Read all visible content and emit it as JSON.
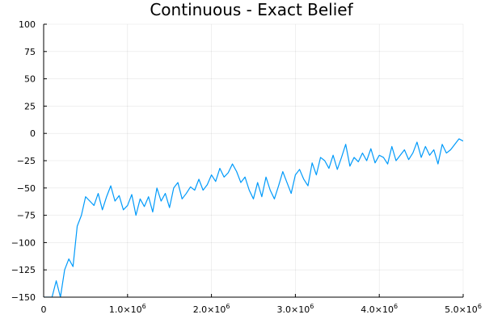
{
  "chart_data": {
    "type": "line",
    "title": "Continuous - Exact Belief",
    "xlabel": "",
    "ylabel": "",
    "xlim": [
      0,
      5000000
    ],
    "ylim": [
      -150,
      100
    ],
    "grid": true,
    "legend": "none",
    "x_ticks": [
      {
        "value": 0,
        "label": "0",
        "exp": ""
      },
      {
        "value": 1000000,
        "label": "1.0×10",
        "exp": "6"
      },
      {
        "value": 2000000,
        "label": "2.0×10",
        "exp": "6"
      },
      {
        "value": 3000000,
        "label": "3.0×10",
        "exp": "6"
      },
      {
        "value": 4000000,
        "label": "4.0×10",
        "exp": "6"
      },
      {
        "value": 5000000,
        "label": "5.0×10",
        "exp": "6"
      }
    ],
    "y_ticks": [
      {
        "value": 100,
        "label": "100"
      },
      {
        "value": 75,
        "label": "75"
      },
      {
        "value": 50,
        "label": "50"
      },
      {
        "value": 25,
        "label": "25"
      },
      {
        "value": 0,
        "label": "0"
      },
      {
        "value": -25,
        "label": "−25"
      },
      {
        "value": -50,
        "label": "−50"
      },
      {
        "value": -75,
        "label": "−75"
      },
      {
        "value": -100,
        "label": "−100"
      },
      {
        "value": -125,
        "label": "−125"
      },
      {
        "value": -150,
        "label": "−150"
      }
    ],
    "series": [
      {
        "color": "#009AFA",
        "x": [
          0,
          100000,
          150000,
          200000,
          250000,
          300000,
          350000,
          400000,
          450000,
          500000,
          550000,
          600000,
          650000,
          700000,
          750000,
          800000,
          850000,
          900000,
          950000,
          1000000,
          1050000,
          1100000,
          1150000,
          1200000,
          1250000,
          1300000,
          1350000,
          1400000,
          1450000,
          1500000,
          1550000,
          1600000,
          1650000,
          1700000,
          1750000,
          1800000,
          1850000,
          1900000,
          1950000,
          2000000,
          2050000,
          2100000,
          2150000,
          2200000,
          2250000,
          2300000,
          2350000,
          2400000,
          2450000,
          2500000,
          2550000,
          2600000,
          2650000,
          2700000,
          2750000,
          2800000,
          2850000,
          2900000,
          2950000,
          3000000,
          3050000,
          3100000,
          3150000,
          3200000,
          3250000,
          3300000,
          3350000,
          3400000,
          3450000,
          3500000,
          3550000,
          3600000,
          3650000,
          3700000,
          3750000,
          3800000,
          3850000,
          3900000,
          3950000,
          4000000,
          4050000,
          4100000,
          4150000,
          4200000,
          4250000,
          4300000,
          4350000,
          4400000,
          4450000,
          4500000,
          4550000,
          4600000,
          4650000,
          4700000,
          4750000,
          4800000,
          4850000,
          4900000,
          4950000,
          5000000
        ],
        "y": [
          -150,
          -150,
          -135,
          -150,
          -125,
          -115,
          -122,
          -85,
          -75,
          -58,
          -62,
          -66,
          -55,
          -70,
          -58,
          -48,
          -62,
          -57,
          -70,
          -66,
          -56,
          -75,
          -60,
          -67,
          -58,
          -72,
          -50,
          -62,
          -55,
          -68,
          -50,
          -45,
          -60,
          -55,
          -49,
          -52,
          -42,
          -52,
          -47,
          -38,
          -44,
          -32,
          -40,
          -36,
          -28,
          -35,
          -45,
          -40,
          -52,
          -60,
          -45,
          -58,
          -40,
          -52,
          -60,
          -48,
          -35,
          -45,
          -55,
          -38,
          -33,
          -42,
          -48,
          -27,
          -38,
          -22,
          -25,
          -32,
          -20,
          -33,
          -22,
          -10,
          -30,
          -22,
          -26,
          -18,
          -25,
          -14,
          -27,
          -20,
          -22,
          -28,
          -12,
          -25,
          -20,
          -15,
          -24,
          -18,
          -8,
          -22,
          -12,
          -20,
          -15,
          -28,
          -10,
          -18,
          -15,
          -10,
          -5,
          -7
        ]
      }
    ]
  }
}
